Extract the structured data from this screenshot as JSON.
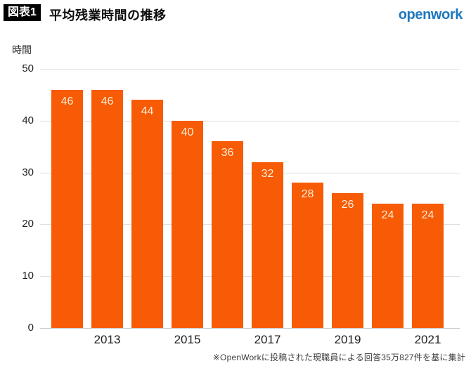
{
  "header": {
    "figure_tag": "図表1",
    "title": "平均残業時間の推移",
    "logo_text": "openwork"
  },
  "chart_data": {
    "type": "bar",
    "title": "平均残業時間の推移",
    "ylabel": "時間",
    "xlabel": "",
    "x_tick_labels": [
      "",
      "2013",
      "",
      "2015",
      "",
      "2017",
      "",
      "2019",
      "",
      "2021"
    ],
    "values": [
      46,
      46,
      44,
      40,
      36,
      32,
      28,
      26,
      24,
      24
    ],
    "y_ticks": [
      0,
      10,
      20,
      30,
      40,
      50
    ],
    "ylim": [
      0,
      50
    ],
    "grid": true,
    "legend": false,
    "colors": {
      "bar": "#F75B06",
      "value_label": "#FCEED8",
      "gridline": "#DEDEDE",
      "baseline": "#C9C9C9",
      "logo_blue": "#1E78BE"
    }
  },
  "footnote": "※OpenWorkに投稿された現職員による回答35万827件を基に集計"
}
